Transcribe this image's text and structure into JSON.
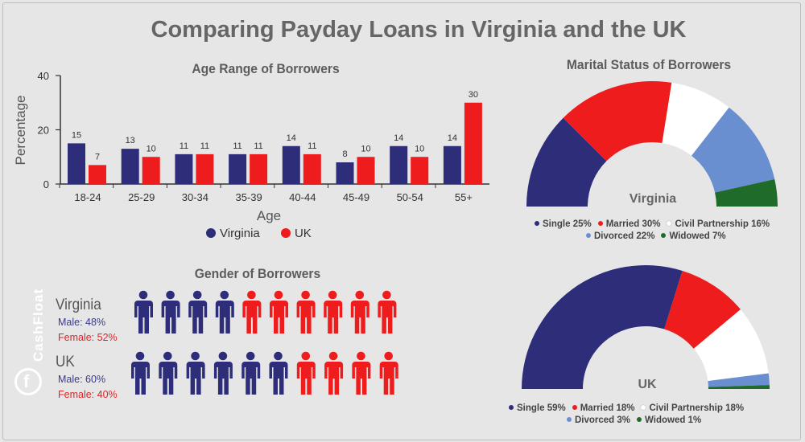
{
  "title": "Comparing Payday Loans in Virginia and the UK",
  "colors": {
    "virginia": "#2d2d7a",
    "uk": "#ee1c1c",
    "single": "#2d2d7a",
    "married": "#ee1c1c",
    "civil": "#ffffff",
    "divorced": "#6a8fd0",
    "widowed": "#1f6b2a",
    "axis": "#333333"
  },
  "brand": {
    "name": "CashFloat"
  },
  "age_chart": {
    "title": "Age Range of Borrowers",
    "ylabel": "Percentage",
    "xlabel": "Age",
    "legend": [
      {
        "label": "Virginia",
        "color": "#2d2d7a"
      },
      {
        "label": "UK",
        "color": "#ee1c1c"
      }
    ]
  },
  "marital": {
    "title": "Marital Status of Borrowers",
    "virginia_label": "Virginia",
    "uk_label": "UK",
    "virginia_legend_row1": [
      {
        "label": "Single 25%",
        "color": "#2d2d7a"
      },
      {
        "label": "Married 30%",
        "color": "#ee1c1c"
      },
      {
        "label": "Civil Partnership 16%",
        "color": "#ffffff"
      }
    ],
    "virginia_legend_row2": [
      {
        "label": "Divorced 22%",
        "color": "#6a8fd0"
      },
      {
        "label": "Widowed 7%",
        "color": "#1f6b2a"
      }
    ],
    "uk_legend_row1": [
      {
        "label": "Single 59%",
        "color": "#2d2d7a"
      },
      {
        "label": "Married 18%",
        "color": "#ee1c1c"
      },
      {
        "label": "Civil Partnership 18%",
        "color": "#ffffff"
      }
    ],
    "uk_legend_row2": [
      {
        "label": "Divorced 3%",
        "color": "#6a8fd0"
      },
      {
        "label": "Widowed 1%",
        "color": "#1f6b2a"
      }
    ]
  },
  "gender": {
    "title": "Gender of Borrowers",
    "virginia": {
      "label": "Virginia",
      "male": "Male: 48%",
      "female": "Female: 52%",
      "male_icons": 4,
      "female_icons": 6
    },
    "uk": {
      "label": "UK",
      "male": "Male: 60%",
      "female": "Female: 40%",
      "male_icons": 6,
      "female_icons": 4
    }
  },
  "chart_data": [
    {
      "type": "bar",
      "title": "Age Range of Borrowers",
      "xlabel": "Age",
      "ylabel": "Percentage",
      "categories": [
        "18-24",
        "25-29",
        "30-34",
        "35-39",
        "40-44",
        "45-49",
        "50-54",
        "55+"
      ],
      "series": [
        {
          "name": "Virginia",
          "values": [
            15,
            13,
            11,
            11,
            14,
            8,
            14,
            14
          ]
        },
        {
          "name": "UK",
          "values": [
            7,
            10,
            11,
            11,
            11,
            10,
            10,
            30
          ]
        }
      ],
      "ylim": [
        0,
        40
      ],
      "yticks": [
        0,
        20,
        40
      ],
      "legend": "bottom",
      "grid": false
    },
    {
      "type": "pie",
      "title": "Virginia",
      "categories": [
        "Single",
        "Married",
        "Civil Partnership",
        "Divorced",
        "Widowed"
      ],
      "values": [
        25,
        30,
        16,
        22,
        7
      ]
    },
    {
      "type": "pie",
      "title": "UK",
      "categories": [
        "Single",
        "Married",
        "Civil Partnership",
        "Divorced",
        "Widowed"
      ],
      "values": [
        59,
        18,
        18,
        3,
        1
      ]
    }
  ]
}
